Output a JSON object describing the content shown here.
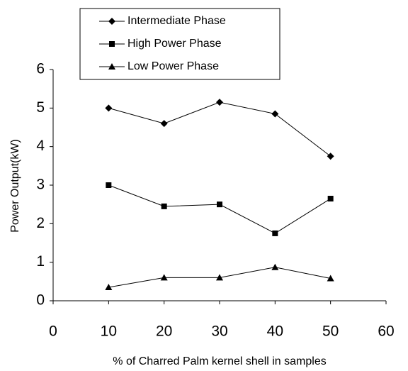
{
  "chart_data": {
    "type": "line",
    "x_label": "% of Charred  Palm kernel shell in samples",
    "y_label": "Power Output(kW)",
    "x": [
      10,
      20,
      30,
      40,
      50
    ],
    "series": [
      {
        "name": "Intermediate Phase",
        "color": "#000000",
        "marker": "diamond",
        "values": [
          5.0,
          4.6,
          5.15,
          4.85,
          3.75
        ]
      },
      {
        "name": "High Power Phase",
        "color": "#000000",
        "marker": "square",
        "values": [
          3.0,
          2.45,
          2.5,
          1.75,
          2.65
        ]
      },
      {
        "name": "Low Power Phase",
        "color": "#000000",
        "marker": "triangle",
        "values": [
          0.35,
          0.6,
          0.6,
          0.87,
          0.58
        ]
      }
    ],
    "xlim": [
      0,
      60
    ],
    "xticks": [
      0,
      10,
      20,
      30,
      40,
      50,
      60
    ],
    "ylim": [
      0,
      6
    ],
    "yticks": [
      0,
      1,
      2,
      3,
      4,
      5,
      6
    ],
    "grid": false,
    "legend": "top"
  }
}
